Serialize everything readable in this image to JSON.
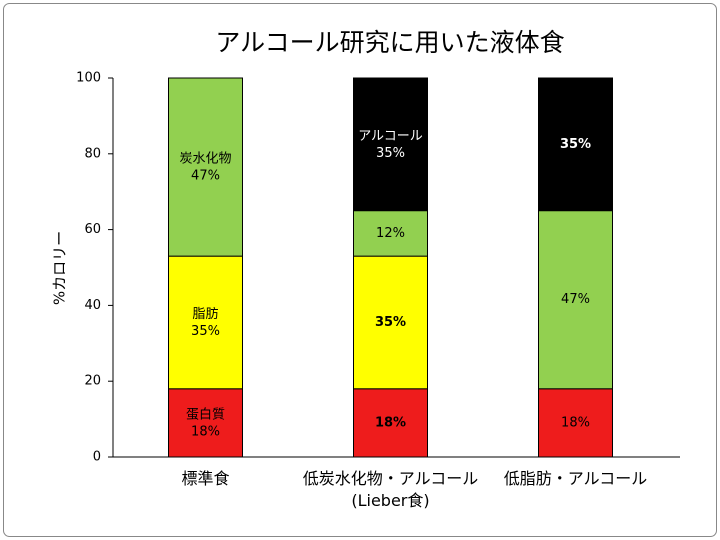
{
  "chart_data": {
    "type": "stacked_bar",
    "title": "アルコール研究に用いた液体食",
    "ylabel": "%カロリー",
    "categories": [
      "標準食",
      "低炭水化物・アルコール\n(Lieber食)",
      "低脂肪・アルコール"
    ],
    "series": [
      {
        "name": "蛋白質",
        "color": "#ee1c1c",
        "values": [
          18,
          18,
          18
        ],
        "value_labels": [
          "18%",
          "18%",
          "18%"
        ],
        "name_shown": [
          true,
          false,
          false
        ],
        "bold": [
          false,
          true,
          false
        ]
      },
      {
        "name": "脂肪",
        "color": "#ffff00",
        "values": [
          35,
          35,
          0
        ],
        "value_labels": [
          "35%",
          "35%",
          null
        ],
        "name_shown": [
          true,
          false,
          false
        ],
        "bold": [
          false,
          true,
          false
        ]
      },
      {
        "name": "炭水化物",
        "color": "#92d050",
        "values": [
          47,
          12,
          47
        ],
        "value_labels": [
          "47%",
          "12%",
          "47%"
        ],
        "name_shown": [
          true,
          false,
          false
        ],
        "bold": [
          false,
          false,
          false
        ]
      },
      {
        "name": "アルコール",
        "color": "#000000",
        "values": [
          0,
          35,
          35
        ],
        "value_labels": [
          null,
          "35%",
          "35%"
        ],
        "name_shown": [
          false,
          true,
          false
        ],
        "bold": [
          false,
          false,
          true
        ]
      }
    ],
    "ylim": [
      0,
      100
    ],
    "yticks": [
      0,
      20,
      40,
      60,
      80,
      100
    ]
  }
}
